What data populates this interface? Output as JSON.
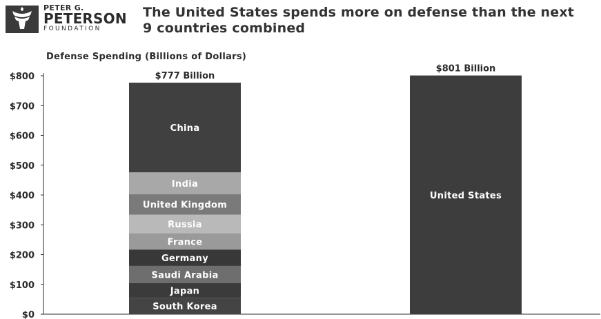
{
  "logo": {
    "line1": "PETER G.",
    "line2": "PETERSON",
    "line3": "FOUNDATION"
  },
  "title": "The United States spends more on defense than the next 9 countries combined",
  "subtitle": "Defense Spending (Billions of Dollars)",
  "colors": {
    "dark": "#3d3d3d",
    "text": "#2b2b2b"
  },
  "chart_data": {
    "type": "bar",
    "stacked": true,
    "ylim": [
      0,
      800
    ],
    "yticks": [
      "$0",
      "$100",
      "$200",
      "$300",
      "$400",
      "$500",
      "$600",
      "$700",
      "$800"
    ],
    "ytick_values": [
      0,
      100,
      200,
      300,
      400,
      500,
      600,
      700,
      800
    ],
    "grid": false,
    "bars": [
      {
        "total_label": "$777 Billion",
        "total": 777,
        "segments": [
          {
            "name": "South Korea",
            "value": 55,
            "color": "#444444"
          },
          {
            "name": "Japan",
            "value": 49,
            "color": "#3b3b3b"
          },
          {
            "name": "Saudi Arabia",
            "value": 58,
            "color": "#6e6e6e"
          },
          {
            "name": "Germany",
            "value": 55,
            "color": "#383838"
          },
          {
            "name": "France",
            "value": 55,
            "color": "#9a9a9a"
          },
          {
            "name": "Russia",
            "value": 62,
            "color": "#b9b9b9"
          },
          {
            "name": "United Kingdom",
            "value": 69,
            "color": "#7a7a7a"
          },
          {
            "name": "India",
            "value": 73,
            "color": "#a8a8a8"
          },
          {
            "name": "China",
            "value": 301,
            "color": "#404040"
          }
        ]
      },
      {
        "total_label": "$801 Billion",
        "total": 801,
        "segments": [
          {
            "name": "United States",
            "value": 801,
            "color": "#3d3d3d"
          }
        ]
      }
    ]
  }
}
